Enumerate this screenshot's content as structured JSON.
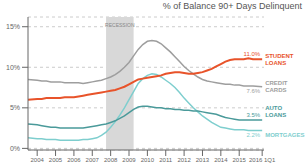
{
  "chart_data": {
    "type": "line",
    "title": "% of Balance 90+ Days Delinquent",
    "x": [
      2003.5,
      2004.0,
      2004.25,
      2004.5,
      2004.75,
      2005.0,
      2005.25,
      2005.5,
      2005.75,
      2006.0,
      2006.25,
      2006.5,
      2006.75,
      2007.0,
      2007.25,
      2007.5,
      2007.75,
      2008.0,
      2008.25,
      2008.5,
      2008.75,
      2009.0,
      2009.25,
      2009.5,
      2009.75,
      2010.0,
      2010.25,
      2010.5,
      2010.75,
      2011.0,
      2011.25,
      2011.5,
      2011.75,
      2012.0,
      2012.25,
      2012.5,
      2012.75,
      2013.0,
      2013.25,
      2013.5,
      2013.75,
      2014.0,
      2014.25,
      2014.5,
      2014.75,
      2015.0,
      2015.25,
      2015.5,
      2015.75,
      2016.25
    ],
    "series": [
      {
        "name": "CREDIT\nCARDS",
        "color": "#9e9e9e",
        "values": [
          0.085,
          0.084,
          0.083,
          0.083,
          0.082,
          0.082,
          0.082,
          0.081,
          0.081,
          0.081,
          0.081,
          0.08,
          0.081,
          0.082,
          0.083,
          0.084,
          0.086,
          0.088,
          0.091,
          0.095,
          0.1,
          0.106,
          0.114,
          0.122,
          0.128,
          0.132,
          0.133,
          0.132,
          0.129,
          0.124,
          0.119,
          0.113,
          0.107,
          0.101,
          0.096,
          0.092,
          0.088,
          0.085,
          0.083,
          0.082,
          0.081,
          0.08,
          0.079,
          0.079,
          0.078,
          0.078,
          0.077,
          0.077,
          0.077,
          0.076
        ]
      },
      {
        "name": "MORTGAGES",
        "color": "#7ecece",
        "values": [
          0.013,
          0.012,
          0.012,
          0.011,
          0.011,
          0.011,
          0.01,
          0.01,
          0.01,
          0.01,
          0.01,
          0.011,
          0.011,
          0.012,
          0.013,
          0.016,
          0.02,
          0.026,
          0.033,
          0.041,
          0.05,
          0.06,
          0.07,
          0.08,
          0.086,
          0.09,
          0.092,
          0.091,
          0.088,
          0.084,
          0.08,
          0.075,
          0.069,
          0.062,
          0.056,
          0.05,
          0.045,
          0.04,
          0.036,
          0.032,
          0.029,
          0.026,
          0.025,
          0.024,
          0.023,
          0.023,
          0.023,
          0.022,
          0.022,
          0.022
        ]
      },
      {
        "name": "AUTO\nLOANS",
        "color": "#4a9a9a",
        "values": [
          0.03,
          0.029,
          0.028,
          0.027,
          0.026,
          0.026,
          0.025,
          0.025,
          0.025,
          0.025,
          0.025,
          0.025,
          0.026,
          0.027,
          0.028,
          0.029,
          0.03,
          0.032,
          0.034,
          0.037,
          0.04,
          0.044,
          0.048,
          0.051,
          0.052,
          0.052,
          0.051,
          0.05,
          0.05,
          0.049,
          0.049,
          0.048,
          0.048,
          0.047,
          0.047,
          0.046,
          0.046,
          0.045,
          0.044,
          0.043,
          0.042,
          0.04,
          0.038,
          0.037,
          0.036,
          0.035,
          0.035,
          0.035,
          0.035,
          0.035
        ]
      },
      {
        "name": "STUDENT\nLOANS",
        "color": "#e8532a",
        "values": [
          0.06,
          0.061,
          0.061,
          0.062,
          0.062,
          0.062,
          0.062,
          0.063,
          0.063,
          0.063,
          0.064,
          0.065,
          0.066,
          0.067,
          0.068,
          0.069,
          0.07,
          0.071,
          0.072,
          0.074,
          0.076,
          0.079,
          0.082,
          0.085,
          0.086,
          0.087,
          0.088,
          0.089,
          0.09,
          0.092,
          0.093,
          0.094,
          0.094,
          0.093,
          0.092,
          0.092,
          0.093,
          0.094,
          0.096,
          0.098,
          0.101,
          0.104,
          0.107,
          0.109,
          0.11,
          0.11,
          0.11,
          0.111,
          0.11,
          0.11
        ]
      }
    ],
    "xlim": [
      2003.5,
      2016.35
    ],
    "xticks": [
      2004,
      2005,
      2006,
      2007,
      2008,
      2009,
      2010,
      2011,
      2012,
      2013,
      2014,
      2015,
      {
        "value": 2016.25,
        "label": "2016 1Q1"
      }
    ],
    "ylim": [
      -0.002,
      0.162
    ],
    "yticks": [
      {
        "value": 0,
        "label": "0%"
      },
      {
        "value": 0.05,
        "label": "5%"
      },
      {
        "value": 0.1,
        "label": "10%"
      },
      {
        "value": 0.15,
        "label": "15%"
      }
    ],
    "grid": true,
    "spans": [
      {
        "x0": 2007.75,
        "x1": 2009.25,
        "color": "#d8d8d8"
      }
    ],
    "annotations": [
      {
        "text": "RECESSION",
        "x": 2008.5,
        "y": 0.155
      },
      {
        "text": "11.0%",
        "x": 2016.25,
        "y": 0.11
      },
      {
        "text": "7.6%",
        "x": 2016.25,
        "y": 0.076
      },
      {
        "text": "3.5%",
        "x": 2016.25,
        "y": 0.035
      },
      {
        "text": "2.2%",
        "x": 2016.25,
        "y": 0.022
      }
    ]
  }
}
